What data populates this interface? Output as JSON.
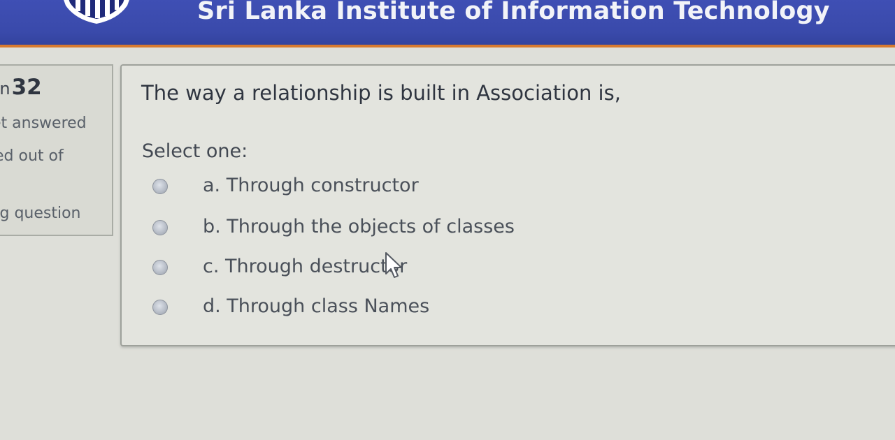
{
  "header": {
    "title": "Sri Lanka Institute of Information Technology",
    "logo_icon": "sliit-shield-logo-icon",
    "background_color": "#3d4db0",
    "accent_border_color": "#d87a2e"
  },
  "question_info": {
    "label_prefix": "ion",
    "number": "32",
    "status": "et answered",
    "marked": "ed out of",
    "flag": "ag question"
  },
  "question": {
    "text": "The way a relationship is built in Association is,",
    "prompt": "Select one:",
    "options": [
      {
        "label": "a. Through constructor",
        "selected": false
      },
      {
        "label": "b. Through the objects of classes",
        "selected": false
      },
      {
        "label": "c. Through destructor",
        "selected": false
      },
      {
        "label": "d. Through class Names",
        "selected": false
      }
    ]
  }
}
